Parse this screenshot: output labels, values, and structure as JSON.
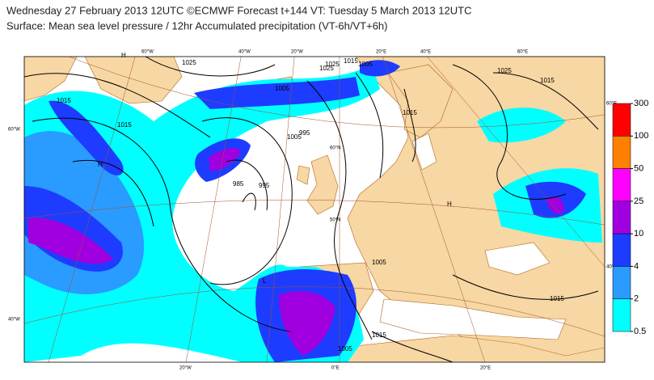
{
  "header": {
    "line1": "Wednesday 27 February 2013 12UTC ©ECMWF Forecast t+144 VT: Tuesday 5 March 2013 12UTC",
    "line2": "Surface: Mean sea level pressure / 12hr Accumulated precipitation (VT-6h/VT+6h)"
  },
  "colorbar": {
    "labels": [
      "300",
      "100",
      "50",
      "25",
      "10",
      "4",
      "2",
      "0.5"
    ],
    "colors": [
      "#ff0000",
      "#ff8000",
      "#ff00ff",
      "#a000e0",
      "#1e3cff",
      "#2a9bff",
      "#00ffff"
    ]
  },
  "map": {
    "isobar_labels": [
      "1025",
      "1015",
      "1025",
      "1015",
      "1005",
      "1005",
      "1015",
      "1005",
      "995",
      "985",
      "1005",
      "995",
      "1015",
      "1025",
      "1015",
      "1015",
      "1005",
      "1015",
      "1025"
    ],
    "pressure_centres": [
      "H",
      "H",
      "H",
      "L"
    ],
    "graticule_labels": [
      "60°W",
      "40°W",
      "20°W",
      "20°E",
      "40°E",
      "60°E",
      "60°W",
      "40°W",
      "60°N",
      "50°N",
      "60°E",
      "40°E",
      "20°W",
      "0°E",
      "20°E"
    ]
  }
}
